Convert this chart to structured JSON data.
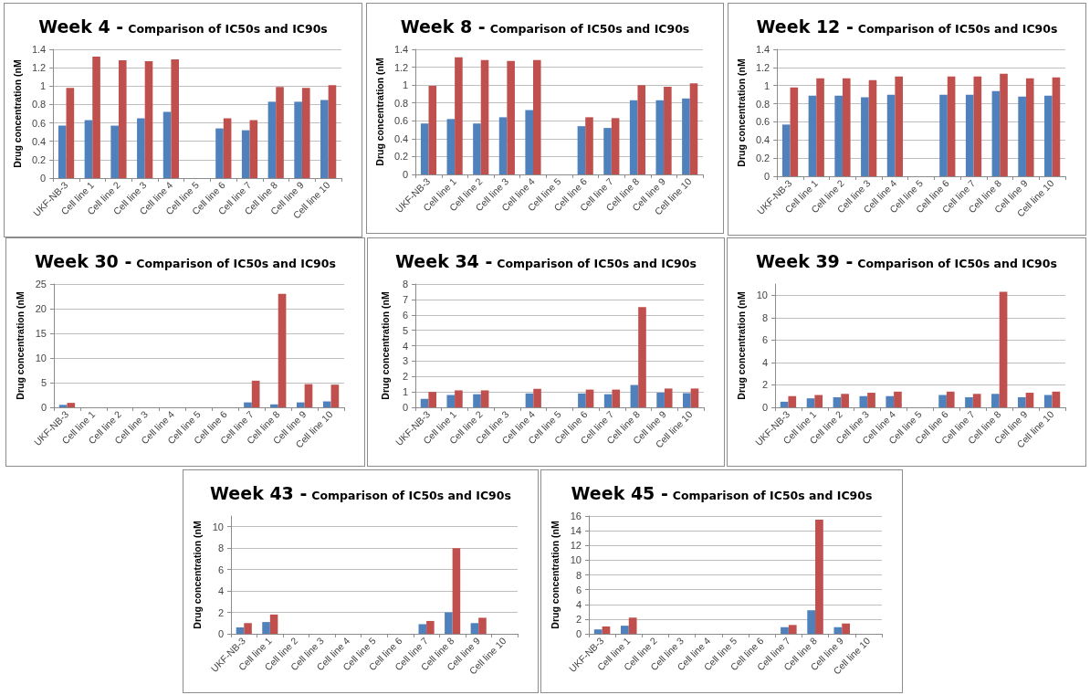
{
  "chart_data": [
    {
      "type": "bar",
      "title": "Week 4 -",
      "subtitle": "Comparison of IC50s and IC90s",
      "ylabel": "Drug concentration (nM",
      "categories": [
        "UKF-NB-3",
        "Cell line 1",
        "Cell line 2",
        "Cell line 3",
        "Cell line 4",
        "Cell line 5",
        "Cell line 6",
        "Cell line 7",
        "Cell line 8",
        "Cell line 9",
        "Cell line 10"
      ],
      "ylim": [
        0,
        1.4
      ],
      "yticks": [
        0,
        0.2,
        0.4,
        0.6,
        0.8,
        1,
        1.2,
        1.4
      ],
      "grid": "y",
      "series": [
        {
          "color": "#4f81bd",
          "values": [
            0.57,
            0.63,
            0.57,
            0.65,
            0.72,
            null,
            0.54,
            0.52,
            0.83,
            0.83,
            0.85
          ]
        },
        {
          "color": "#c0504d",
          "values": [
            0.98,
            1.32,
            1.28,
            1.27,
            1.29,
            null,
            0.65,
            0.63,
            0.99,
            0.98,
            1.01
          ]
        }
      ]
    },
    {
      "type": "bar",
      "title": "Week 8 -",
      "subtitle": "Comparison of IC50s and IC90s",
      "ylabel": "Drug concentration (nM",
      "categories": [
        "UKF-NB-3",
        "Cell line 1",
        "Cell line 2",
        "Cell line 3",
        "Cell line 4",
        "Cell line 5",
        "Cell line 6",
        "Cell line 7",
        "Cell line 8",
        "Cell line 9",
        "Cell line 10"
      ],
      "ylim": [
        0,
        1.4
      ],
      "yticks": [
        0,
        0.2,
        0.4,
        0.6,
        0.8,
        1,
        1.2,
        1.4
      ],
      "grid": "y",
      "series": [
        {
          "color": "#4f81bd",
          "values": [
            0.57,
            0.62,
            0.57,
            0.64,
            0.72,
            null,
            0.54,
            0.52,
            0.83,
            0.83,
            0.85
          ]
        },
        {
          "color": "#c0504d",
          "values": [
            0.99,
            1.31,
            1.28,
            1.27,
            1.28,
            null,
            0.64,
            0.63,
            1.0,
            0.98,
            1.02
          ]
        }
      ]
    },
    {
      "type": "bar",
      "title": "Week 12 -",
      "subtitle": "Comparison of IC50s and IC90s",
      "ylabel": "Drug concentration (nM",
      "categories": [
        "UKF-NB-3",
        "Cell line 1",
        "Cell line 2",
        "Cell line 3",
        "Cell line 4",
        "Cell line 5",
        "Cell line 6",
        "Cell line 7",
        "Cell line 8",
        "Cell line 9",
        "Cell line 10"
      ],
      "ylim": [
        0,
        1.4
      ],
      "yticks": [
        0,
        0.2,
        0.4,
        0.6,
        0.8,
        1,
        1.2,
        1.4
      ],
      "grid": "y",
      "series": [
        {
          "color": "#4f81bd",
          "values": [
            0.57,
            0.89,
            0.89,
            0.87,
            0.9,
            null,
            0.9,
            0.9,
            0.94,
            0.88,
            0.89
          ]
        },
        {
          "color": "#c0504d",
          "values": [
            0.98,
            1.08,
            1.08,
            1.06,
            1.1,
            null,
            1.1,
            1.1,
            1.13,
            1.08,
            1.09
          ]
        }
      ]
    },
    {
      "type": "bar",
      "title": "Week 30 -",
      "subtitle": "Comparison of IC50s and IC90s",
      "ylabel": "Drug concentration (nM",
      "categories": [
        "UKF-NB-3",
        "Cell line 1",
        "Cell line 2",
        "Cell line 3",
        "Cell line 4",
        "Cell line 5",
        "Cell line 6",
        "Cell line 7",
        "Cell line 8",
        "Cell line 9",
        "Cell line 10"
      ],
      "ylim": [
        0,
        25
      ],
      "yticks": [
        0,
        5,
        10,
        15,
        20,
        25
      ],
      "grid": "y",
      "series": [
        {
          "color": "#4f81bd",
          "values": [
            0.5,
            null,
            null,
            null,
            null,
            null,
            null,
            1.0,
            0.6,
            1.0,
            1.2
          ]
        },
        {
          "color": "#c0504d",
          "values": [
            0.9,
            null,
            null,
            null,
            null,
            null,
            null,
            5.4,
            23,
            4.7,
            4.6
          ]
        }
      ]
    },
    {
      "type": "bar",
      "title": "Week 34 -",
      "subtitle": "Comparison of IC50s and IC90s",
      "ylabel": "Drug concentration (nM",
      "categories": [
        "UKF-NB-3",
        "Cell line 1",
        "Cell line 2",
        "Cell line 3",
        "Cell line 4",
        "Cell line 5",
        "Cell line 6",
        "Cell line 7",
        "Cell line 8",
        "Cell line 9",
        "Cell line 10"
      ],
      "ylim": [
        0,
        8
      ],
      "yticks": [
        0,
        1,
        2,
        3,
        4,
        5,
        6,
        7,
        8
      ],
      "grid": "y",
      "series": [
        {
          "color": "#4f81bd",
          "values": [
            0.55,
            0.8,
            0.85,
            null,
            0.9,
            null,
            0.9,
            0.85,
            1.45,
            0.95,
            0.92
          ]
        },
        {
          "color": "#c0504d",
          "values": [
            1.0,
            1.1,
            1.1,
            null,
            1.2,
            null,
            1.15,
            1.15,
            6.5,
            1.22,
            1.22
          ]
        }
      ]
    },
    {
      "type": "bar",
      "title": "Week 39 -",
      "subtitle": "Comparison of IC50s and IC90s",
      "ylabel": "Drug concentration (nM",
      "categories": [
        "UKF-NB-3",
        "Cell line 1",
        "Cell line 2",
        "Cell line 3",
        "Cell line 4",
        "Cell line 5",
        "Cell line 6",
        "Cell line 7",
        "Cell line 8",
        "Cell line 9",
        "Cell line 10"
      ],
      "ylim": [
        0,
        11
      ],
      "yticks": [
        0,
        2,
        4,
        6,
        8,
        10
      ],
      "grid": "y",
      "series": [
        {
          "color": "#4f81bd",
          "values": [
            0.5,
            0.8,
            0.9,
            1.0,
            1.0,
            null,
            1.1,
            0.9,
            1.2,
            0.9,
            1.1
          ]
        },
        {
          "color": "#c0504d",
          "values": [
            1.0,
            1.1,
            1.2,
            1.3,
            1.4,
            null,
            1.4,
            1.2,
            10.3,
            1.3,
            1.4
          ]
        }
      ]
    },
    {
      "type": "bar",
      "title": "Week 43 -",
      "subtitle": "Comparison of IC50s and IC90s",
      "ylabel": "Drug concentration (nM",
      "categories": [
        "UKF-NB-3",
        "Cell line 1",
        "Cell line 2",
        "Cell line 3",
        "Cell line 4",
        "Cell line 5",
        "Cell line 6",
        "Cell line 7",
        "Cell line 8",
        "Cell line 9",
        "Cell line 10"
      ],
      "ylim": [
        0,
        11
      ],
      "yticks": [
        0,
        2,
        4,
        6,
        8,
        10
      ],
      "grid": "y",
      "series": [
        {
          "color": "#4f81bd",
          "values": [
            0.6,
            1.1,
            null,
            null,
            null,
            null,
            null,
            0.9,
            2.0,
            1.0,
            null
          ]
        },
        {
          "color": "#c0504d",
          "values": [
            1.0,
            1.8,
            null,
            null,
            null,
            null,
            null,
            1.2,
            8.0,
            1.5,
            null
          ]
        }
      ]
    },
    {
      "type": "bar",
      "title": "Week 45 -",
      "subtitle": "Comparison of IC50s and IC90s",
      "ylabel": "Drug concentration (nM",
      "categories": [
        "UKF-NB-3",
        "Cell line 1",
        "Cell line 2",
        "Cell line 3",
        "Cell line 4",
        "Cell line 5",
        "Cell line 6",
        "Cell line 7",
        "Cell line 8",
        "Cell line 9",
        "Cell line 10"
      ],
      "ylim": [
        0,
        16
      ],
      "yticks": [
        0,
        2,
        4,
        6,
        8,
        10,
        12,
        14,
        16
      ],
      "grid": "y",
      "series": [
        {
          "color": "#4f81bd",
          "values": [
            0.6,
            1.1,
            null,
            null,
            null,
            null,
            null,
            0.9,
            3.2,
            0.9,
            null
          ]
        },
        {
          "color": "#c0504d",
          "values": [
            1.0,
            2.2,
            null,
            null,
            null,
            null,
            null,
            1.2,
            15.5,
            1.4,
            null
          ]
        }
      ]
    }
  ]
}
